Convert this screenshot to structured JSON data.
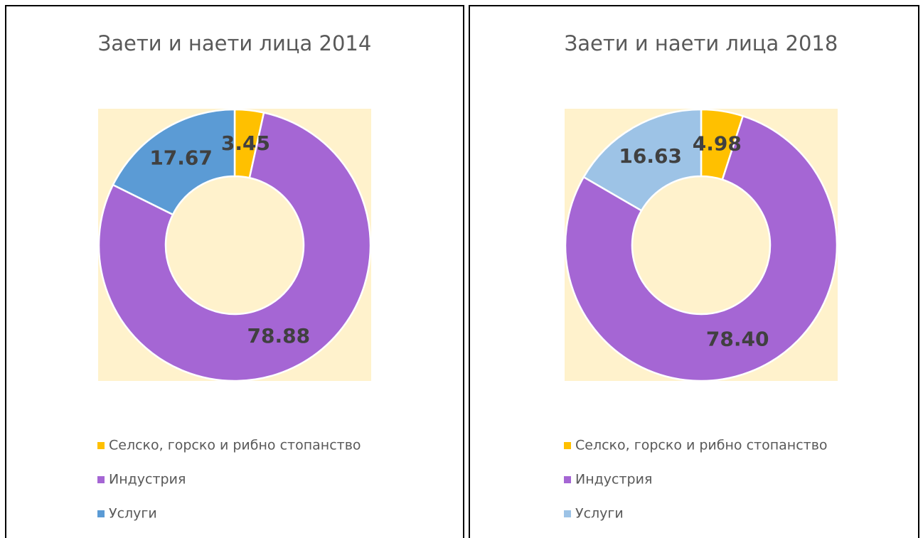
{
  "chart_data": [
    {
      "type": "donut",
      "title": "Заети и наети лица 2014",
      "categories": [
        "Селско, горско и рибно стопанство",
        "Индустрия",
        "Услуги"
      ],
      "values": [
        3.45,
        78.88,
        17.67
      ],
      "colors": [
        "#ffc000",
        "#a566d4",
        "#5b9bd5"
      ],
      "legend": "bottom"
    },
    {
      "type": "donut",
      "title": "Заети и наети лица 2018",
      "categories": [
        "Селско, горско и рибно стопанство",
        "Индустрия",
        "Услуги"
      ],
      "values": [
        4.98,
        78.4,
        16.63
      ],
      "value_labels": [
        "4.98",
        "78.40",
        "16.63"
      ],
      "colors": [
        "#ffc000",
        "#a566d4",
        "#9dc3e6"
      ],
      "legend": "bottom"
    }
  ]
}
